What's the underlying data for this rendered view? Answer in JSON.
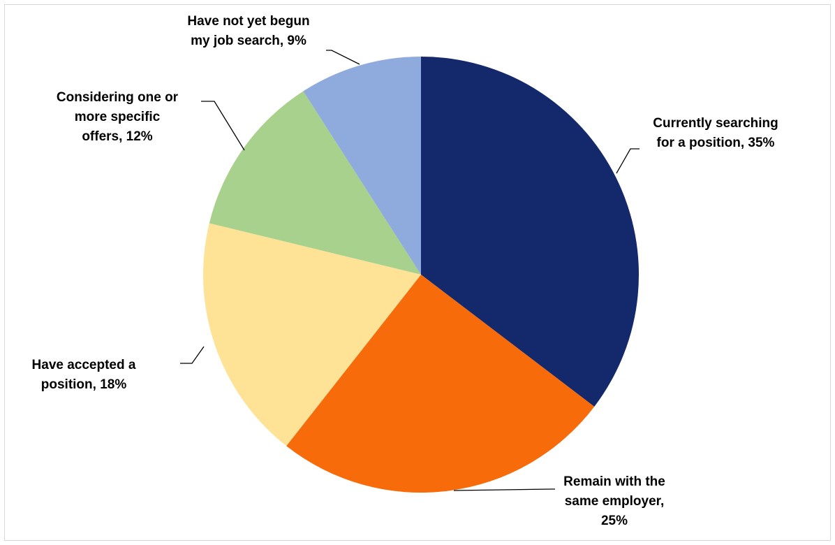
{
  "chart_data": {
    "type": "pie",
    "title": "",
    "start_angle_deg": 0,
    "direction": "clockwise",
    "slices": [
      {
        "label": "Currently searching for a position",
        "display_lines": [
          "Currently searching",
          "for a position, 35%"
        ],
        "value": 35,
        "color": "#14296b"
      },
      {
        "label": "Remain with the same employer",
        "display_lines": [
          "Remain with the",
          "same employer,",
          "25%"
        ],
        "value": 25,
        "color": "#f76b0b"
      },
      {
        "label": "Have accepted a position",
        "display_lines": [
          "Have accepted a",
          "position, 18%"
        ],
        "value": 18,
        "color": "#fee397"
      },
      {
        "label": "Considering one or more specific offers",
        "display_lines": [
          "Considering one or",
          "more specific",
          "offers, 12%"
        ],
        "value": 12,
        "color": "#a9d18e"
      },
      {
        "label": "Have not yet begun my job search",
        "display_lines": [
          "Have not yet begun",
          "my job search, 9%"
        ],
        "value": 9,
        "color": "#8faadc"
      }
    ],
    "legend": "none",
    "data_labels": "outside with leader lines"
  }
}
